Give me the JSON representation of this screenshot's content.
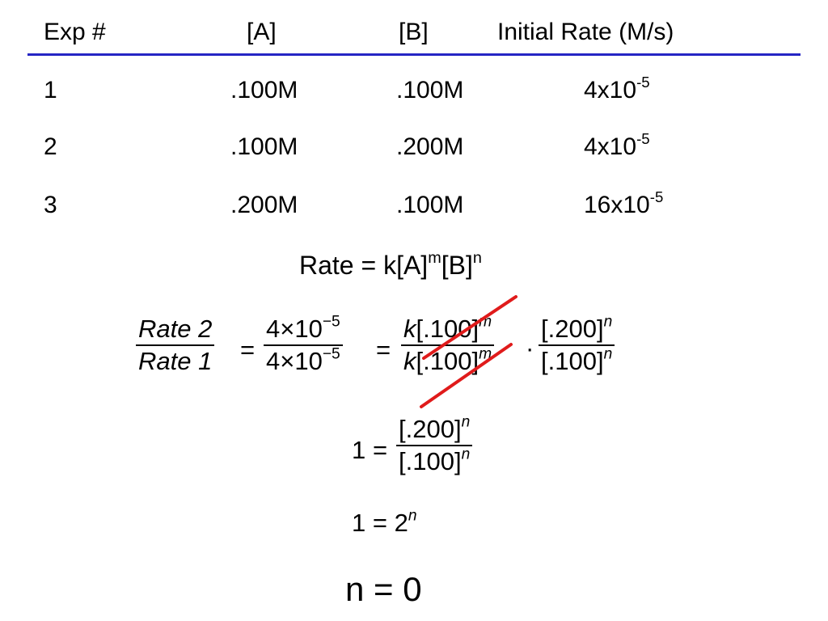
{
  "table": {
    "headers": [
      "Exp #",
      "[A]",
      "[B]",
      "Initial Rate (M/s)"
    ],
    "rows": [
      {
        "exp": "1",
        "a": ".100M",
        "b": ".100M",
        "rate_base": "4x10",
        "rate_exp": "-5"
      },
      {
        "exp": "2",
        "a": ".100M",
        "b": ".200M",
        "rate_base": "4x10",
        "rate_exp": "-5"
      },
      {
        "exp": "3",
        "a": ".200M",
        "b": ".100M",
        "rate_base": "16x10",
        "rate_exp": "-5"
      }
    ]
  },
  "rate_law": {
    "prefix": "Rate = k[A]",
    "m": "m",
    "mid": "[B]",
    "n": "n"
  },
  "ratio_eq": {
    "lhs_num": "Rate 2",
    "lhs_den": "Rate 1",
    "equals": "=",
    "mid_num_base": "4×10",
    "mid_num_exp": "−5",
    "mid_den_base": "4×10",
    "mid_den_exp": "−5",
    "k": "k",
    "conc_num": "[.100]",
    "conc_den": "[.100]",
    "m": "m",
    "dot": "·",
    "b_num": "[.200]",
    "b_den": "[.100]",
    "n": "n"
  },
  "step2": {
    "one": "1",
    "equals": "=",
    "num": "[.200]",
    "den": "[.100]",
    "n": "n"
  },
  "step3": {
    "one": "1",
    "equals": "=",
    "two": "2",
    "n": "n"
  },
  "answer": "n = 0",
  "colors": {
    "rule": "#2525c4",
    "strike": "#e01b1b"
  }
}
